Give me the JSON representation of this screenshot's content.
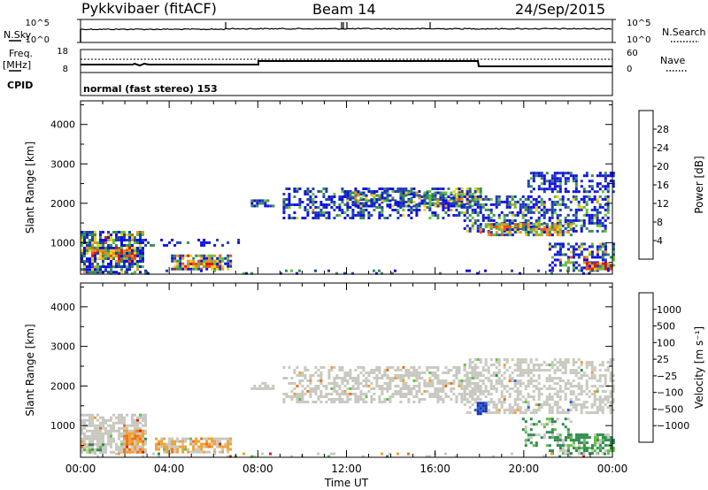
{
  "header": {
    "title": "Pykkvibaer (fitACF)",
    "beam": "Beam 14",
    "date": "24/Sep/2015"
  },
  "top_panel": {
    "left_label": "N.Sky",
    "right_label": "N.Search",
    "ticks_left": [
      "10^5",
      "10^0"
    ],
    "ticks_right": [
      "10^5",
      "10^0"
    ]
  },
  "freq_panel": {
    "left_label_1": "Freq.",
    "left_label_2": "[MHz]",
    "right_label": "Nave",
    "ticks_left": [
      "18",
      "8"
    ],
    "ticks_right": [
      "60",
      "0"
    ]
  },
  "cpid_panel": {
    "label": "CPID",
    "text": "normal (fast stereo) 153"
  },
  "chart_data": [
    {
      "type": "heatmap",
      "name": "power",
      "ylabel": "Slant Range [km]",
      "xlabel": "Time UT",
      "yticks": [
        "1000",
        "2000",
        "3000",
        "4000"
      ],
      "xticks": [
        "00:00",
        "04:00",
        "08:00",
        "12:00",
        "16:00",
        "20:00",
        "00:00"
      ],
      "ylim": [
        200,
        4600
      ],
      "colorbar": {
        "label": "Power [dB]",
        "ticks": [
          "4",
          "8",
          "12",
          "16",
          "20",
          "24",
          "28"
        ],
        "colors": [
          "#1010e0",
          "#2040b0",
          "#3a8a5a",
          "#60c040",
          "#f0d020",
          "#f09020",
          "#f05010",
          "#e01010"
        ]
      }
    },
    {
      "type": "heatmap",
      "name": "velocity",
      "ylabel": "Slant Range [km]",
      "xlabel": "Time UT",
      "yticks": [
        "1000",
        "2000",
        "3000",
        "4000"
      ],
      "xticks": [
        "00:00",
        "04:00",
        "08:00",
        "12:00",
        "16:00",
        "20:00",
        "00:00"
      ],
      "ylim": [
        200,
        4600
      ],
      "colorbar": {
        "label": "Velocity [m s⁻¹]",
        "ticks": [
          "1000",
          "500",
          "100",
          "25",
          "−25",
          "−100",
          "−500",
          "−1000"
        ],
        "colors": [
          "#1830b0",
          "#3060d0",
          "#2e8a50",
          "#60c040",
          "#c8c8c0",
          "#c8c8c0",
          "#f0a030",
          "#f07010",
          "#e02010"
        ]
      }
    }
  ]
}
